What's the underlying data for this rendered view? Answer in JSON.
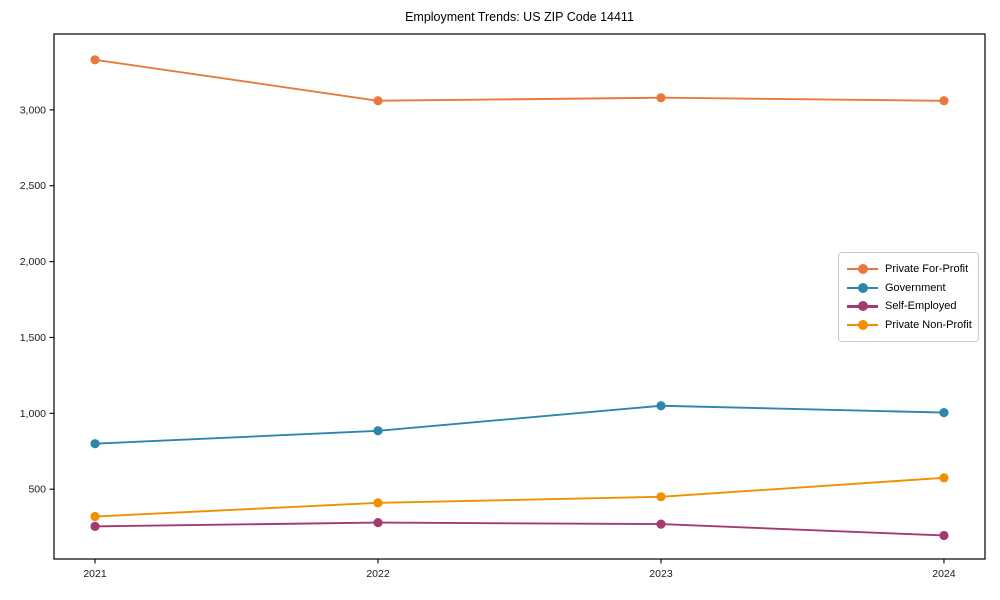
{
  "chart_data": {
    "type": "line",
    "title": "Employment Trends: US ZIP Code 14411",
    "xlabel": "",
    "ylabel": "",
    "x": [
      2021,
      2022,
      2023,
      2024
    ],
    "x_tick_labels": [
      "2021",
      "2022",
      "2023",
      "2024"
    ],
    "series": [
      {
        "name": "Private For-Profit",
        "color": "#E8793D",
        "values": [
          3330,
          3060,
          3080,
          3060
        ]
      },
      {
        "name": "Government",
        "color": "#2E86AB",
        "values": [
          800,
          885,
          1050,
          1005
        ]
      },
      {
        "name": "Self-Employed",
        "color": "#A23B72",
        "values": [
          255,
          280,
          270,
          195
        ]
      },
      {
        "name": "Private Non-Profit",
        "color": "#F18F01",
        "values": [
          320,
          410,
          450,
          575
        ]
      }
    ],
    "y_ticks": [
      500,
      1000,
      1500,
      2000,
      2500,
      3000
    ],
    "y_tick_labels": [
      "500",
      "1,000",
      "1,500",
      "2,000",
      "2,500",
      "3,000"
    ],
    "xlim": [
      2020.855,
      2024.145
    ],
    "ylim": [
      40,
      3500
    ],
    "grid": false,
    "legend_position": "center-right",
    "marker": "circle",
    "spine_color": "#000000"
  }
}
